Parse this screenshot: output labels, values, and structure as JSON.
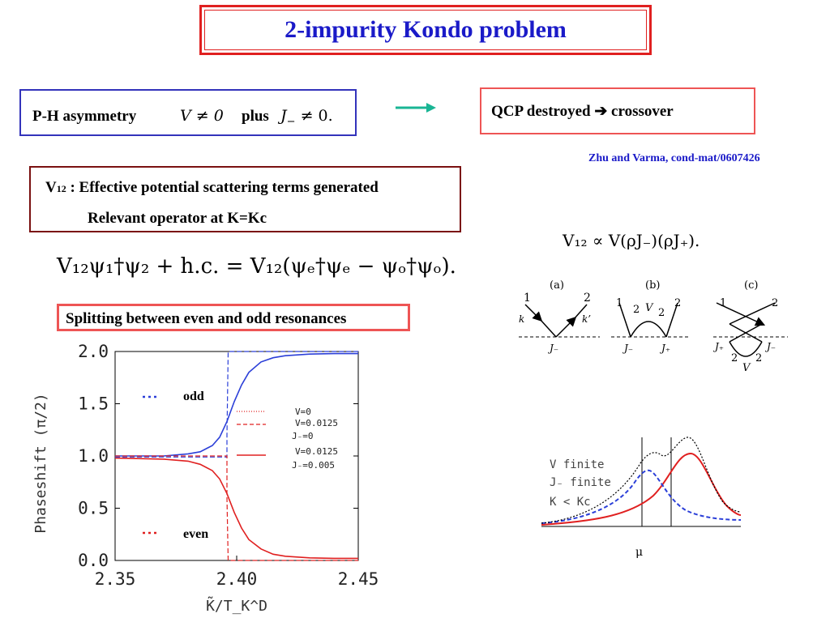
{
  "title": "2-impurity Kondo problem",
  "ph_box": {
    "label": "P-H asymmetry",
    "cond1": "V ≠ 0",
    "plus": "plus",
    "cond2_sym": "J",
    "cond2_sub": "−",
    "cond2_rel": "≠ 0."
  },
  "qcp_box": {
    "text_a": "QCP destroyed",
    "arrow": "➔",
    "text_b": "crossover"
  },
  "reference": "Zhu and Varma, cond-mat/0607426",
  "v12_box": {
    "sym": "V",
    "sub": "12",
    "line1": ": Effective potential scattering terms generated",
    "line2": "Relevant operator at K=Kc"
  },
  "equation": "V₁₂ψ₁†ψ₂ + h.c. = V₁₂(ψₑ†ψₑ − ψₒ†ψₒ).",
  "v12_prop": "V₁₂ ∝ V(ρJ₋)(ρJ₊).",
  "splitting": "Splitting between even and odd resonances",
  "diagrams": {
    "a": {
      "label": "(a)",
      "n1": "1",
      "n2": "2",
      "k": "k",
      "kp": "k’",
      "j": "J₋"
    },
    "b": {
      "label": "(b)",
      "n1": "1",
      "n2": "2",
      "n3": "2",
      "n4": "2",
      "v": "V",
      "j1": "J₋",
      "j2": "J₊"
    },
    "c": {
      "label": "(c)",
      "n1": "1",
      "n2": "2",
      "n3": "2",
      "n4": "2",
      "v": "V",
      "j1": "J₊",
      "j2": "J₋"
    }
  },
  "resonance_plot": {
    "line1": "V finite",
    "line2": "J₋ finite",
    "line3": "K < Kc",
    "xlabel": "μ"
  },
  "chart_data": {
    "type": "line",
    "xlabel": "K̃/T_K^D",
    "ylabel": "Phaseshift (π/2)",
    "xlim": [
      2.35,
      2.45
    ],
    "ylim": [
      0.0,
      2.0
    ],
    "xticks": [
      "2.35",
      "2.40",
      "2.45"
    ],
    "yticks": [
      "2.0",
      "1.5",
      "1.0",
      "0.5",
      "0.0"
    ],
    "labels": {
      "odd": "odd",
      "even": "even"
    },
    "legend": [
      {
        "name": "V=0",
        "style": "dotted"
      },
      {
        "name": "V=0.0125",
        "sub": "J₋=0",
        "style": "dashed"
      },
      {
        "name": "V=0.0125",
        "sub": "J₋=0.005",
        "style": "solid"
      }
    ],
    "series": [
      {
        "name": "odd, V=0.0125, J₋=0.005",
        "color": "#2b3fd8",
        "style": "solid",
        "x": [
          2.35,
          2.37,
          2.38,
          2.385,
          2.39,
          2.393,
          2.396,
          2.399,
          2.402,
          2.405,
          2.41,
          2.415,
          2.42,
          2.43,
          2.44,
          2.45
        ],
        "y": [
          1.0,
          1.0,
          1.02,
          1.04,
          1.1,
          1.18,
          1.33,
          1.52,
          1.68,
          1.8,
          1.9,
          1.94,
          1.96,
          1.975,
          1.98,
          1.98
        ]
      },
      {
        "name": "even, V=0.0125, J₋=0.005",
        "color": "#e02020",
        "style": "solid",
        "x": [
          2.35,
          2.37,
          2.38,
          2.385,
          2.39,
          2.393,
          2.396,
          2.399,
          2.402,
          2.405,
          2.41,
          2.415,
          2.42,
          2.43,
          2.44,
          2.45
        ],
        "y": [
          0.98,
          0.97,
          0.95,
          0.92,
          0.86,
          0.78,
          0.64,
          0.46,
          0.31,
          0.2,
          0.11,
          0.06,
          0.04,
          0.025,
          0.02,
          0.02
        ]
      },
      {
        "name": "odd, V=0.0125, J₋=0",
        "color": "#2b3fd8",
        "style": "dashed",
        "x": [
          2.35,
          2.396,
          2.396,
          2.3965,
          2.45
        ],
        "y": [
          0.99,
          0.99,
          1.2,
          2.0,
          2.0
        ]
      },
      {
        "name": "even, V=0.0125, J₋=0",
        "color": "#e02020",
        "style": "dashed",
        "x": [
          2.35,
          2.396,
          2.396,
          2.3965,
          2.45
        ],
        "y": [
          1.0,
          1.0,
          0.6,
          0.0,
          0.0
        ]
      }
    ]
  }
}
